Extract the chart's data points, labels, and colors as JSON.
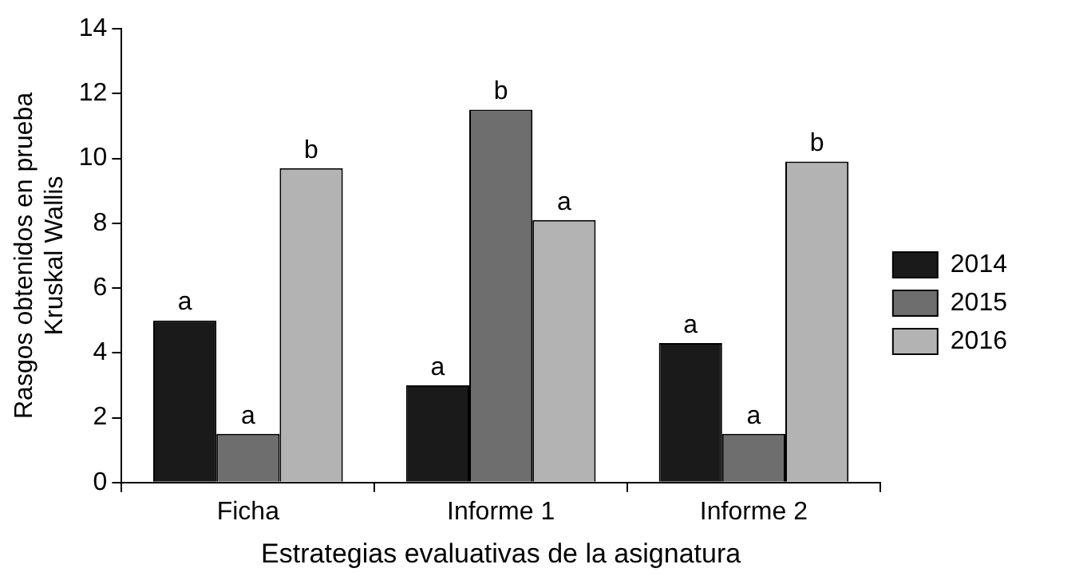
{
  "chart_data": {
    "type": "bar",
    "xlabel": "Estrategias evaluativas de la asignatura",
    "ylabel": "Rasgos obtenidos en prueba\nKruskal Wallis",
    "categories": [
      "Ficha",
      "Informe 1",
      "Informe 2"
    ],
    "series": [
      {
        "name": "2014",
        "color": "#1a1a1a",
        "values": [
          5.0,
          3.0,
          4.3
        ],
        "value_labels": [
          "a",
          "a",
          "a"
        ]
      },
      {
        "name": "2015",
        "color": "#6e6e6e",
        "values": [
          1.5,
          11.5,
          1.5
        ],
        "value_labels": [
          "a",
          "b",
          "a"
        ]
      },
      {
        "name": "2016",
        "color": "#b3b3b3",
        "values": [
          9.7,
          8.1,
          9.9
        ],
        "value_labels": [
          "b",
          "a",
          "b"
        ]
      }
    ],
    "ylim": [
      0,
      14
    ],
    "yticks": [
      0,
      2,
      4,
      6,
      8,
      10,
      12,
      14
    ],
    "grid": false,
    "legend": "right"
  }
}
